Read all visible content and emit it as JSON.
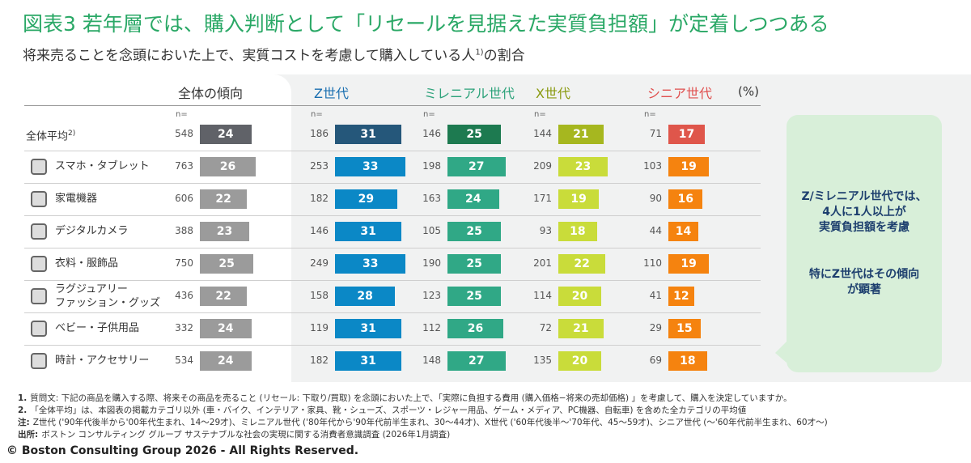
{
  "chart_data": {
    "type": "bar",
    "title": "図表3  若年層では、購入判断として「リセールを見据えた実質負担額」が定着しつつある",
    "subtitle": {
      "text": "将来売ることを念頭においた上で、実質コストを考慮して購入している人",
      "note": "1)",
      "tail": "の割合"
    },
    "unit": "(%)",
    "n_label": "n=",
    "categories": [
      "全体平均",
      "スマホ・タブレット",
      "家電機器",
      "デジタルカメラ",
      "衣料・服飾品",
      "ラグジュアリー\nファッション・グッズ",
      "ベビー・子供用品",
      "時計・アクセサリー"
    ],
    "category_notes": [
      "2)",
      null,
      null,
      null,
      null,
      null,
      null,
      null
    ],
    "series": [
      {
        "name": "全体の傾向",
        "label_color": "#333333",
        "color": "#9b9b9b",
        "average_color": "#606268",
        "n": [
          548,
          763,
          606,
          388,
          750,
          436,
          332,
          534
        ],
        "values": [
          24,
          26,
          22,
          23,
          25,
          22,
          24,
          24
        ]
      },
      {
        "name": "Z世代",
        "label_color": "#1a6fb0",
        "color": "#0b88c6",
        "average_color": "#25577a",
        "n": [
          186,
          253,
          182,
          146,
          249,
          158,
          119,
          182
        ],
        "values": [
          31,
          33,
          29,
          31,
          33,
          28,
          31,
          31
        ]
      },
      {
        "name": "ミレニアル世代",
        "label_color": "#2ca27a",
        "color": "#30a886",
        "average_color": "#1d7a50",
        "n": [
          146,
          198,
          163,
          105,
          190,
          123,
          112,
          148
        ],
        "values": [
          25,
          27,
          24,
          25,
          25,
          25,
          26,
          27
        ]
      },
      {
        "name": "X世代",
        "label_color": "#8a9a10",
        "color": "#c9dc3a",
        "average_color": "#a6b71f",
        "n": [
          144,
          209,
          171,
          93,
          201,
          114,
          72,
          135
        ],
        "values": [
          21,
          23,
          19,
          18,
          22,
          20,
          21,
          20
        ]
      },
      {
        "name": "シニア世代",
        "label_color": "#e0504f",
        "color": "#f5830f",
        "average_color": "#df564b",
        "n": [
          71,
          103,
          90,
          44,
          110,
          41,
          29,
          69
        ],
        "values": [
          17,
          19,
          16,
          14,
          19,
          12,
          15,
          18
        ]
      }
    ],
    "callout": [
      "Z/ミレニアル世代では、\n4人に1人以上が\n実質負担額を考慮",
      "特にZ世代はその傾向\nが顕著"
    ],
    "footnotes": [
      {
        "label": "1.",
        "text": "質問文: 下記の商品を購入する際、将来その商品を売ること (リセール: 下取り/買取) を念頭においた上で、「実際に負担する費用 (購入価格−将来の売却価格) 」を考慮して、購入を決定していますか。"
      },
      {
        "label": "2.",
        "text": "「全体平均」は、本図表の掲載カテゴリ以外 (車・バイク、インテリア・家具、靴・シューズ、スポーツ・レジャー用品、ゲーム・メディア、PC機器、自転車) を含めた全カテゴリの平均値"
      },
      {
        "label": "注:",
        "text": "Z世代 ('90年代後半から'00年代生まれ、14〜29才)、ミレニアル世代 ('80年代から'90年代前半生まれ、30〜44才)、X世代 ('60年代後半〜'70年代、45〜59才)、シニア世代 (〜'60年代前半生まれ、60才〜)"
      },
      {
        "label": "出所:",
        "text": "ボストン コンサルティング グループ サステナブルな社会の実現に関する消費者意識調査 (2026年1月調査)"
      }
    ],
    "copyright": "© Boston Consulting Group 2026 - All Rights Reserved."
  }
}
